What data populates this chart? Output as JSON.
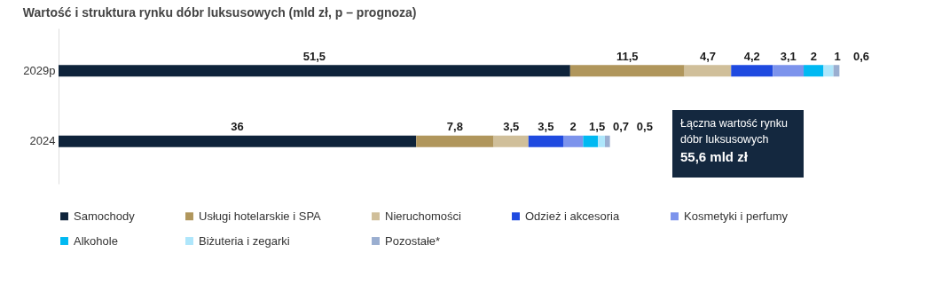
{
  "chart_data": {
    "type": "bar",
    "orientation": "horizontal",
    "stacked": true,
    "legend": "bottom",
    "grid": false,
    "title": "Wartość i struktura rynku dóbr luksusowych (mld zł, p – prognoza)",
    "categories": [
      "2029p",
      "2024"
    ],
    "series": [
      {
        "name": "Samochody",
        "color": "#0e233a",
        "values": [
          51.5,
          36
        ],
        "value_labels": [
          "51,5",
          "36"
        ]
      },
      {
        "name": "Usługi hotelarskie i SPA",
        "color": "#b0965c",
        "values": [
          11.5,
          7.8
        ],
        "value_labels": [
          "11,5",
          "7,8"
        ]
      },
      {
        "name": "Nieruchomości",
        "color": "#d0bf9a",
        "values": [
          4.7,
          3.5
        ],
        "value_labels": [
          "4,7",
          "3,5"
        ]
      },
      {
        "name": "Odzież i akcesoria",
        "color": "#1f4ae0",
        "values": [
          4.2,
          3.5
        ],
        "value_labels": [
          "4,2",
          "3,5"
        ]
      },
      {
        "name": "Kosmetyki i perfumy",
        "color": "#7c93ec",
        "values": [
          3.1,
          2
        ],
        "value_labels": [
          "3,1",
          "2"
        ]
      },
      {
        "name": "Alkohole",
        "color": "#00b9f2",
        "values": [
          2,
          1.5
        ],
        "value_labels": [
          "2",
          "1,5"
        ]
      },
      {
        "name": "Biżuteria i zegarki",
        "color": "#aee6fb",
        "values": [
          1,
          0.7
        ],
        "value_labels": [
          "1",
          "0,7"
        ]
      },
      {
        "name": "Pozostałe*",
        "color": "#9aaed0",
        "values": [
          0.6,
          0.5
        ],
        "value_labels": [
          "0,6",
          "0,5"
        ]
      }
    ],
    "annotations": [
      "Łączna wartość rynku dóbr luksusowych 55,6 mld zł"
    ]
  }
}
